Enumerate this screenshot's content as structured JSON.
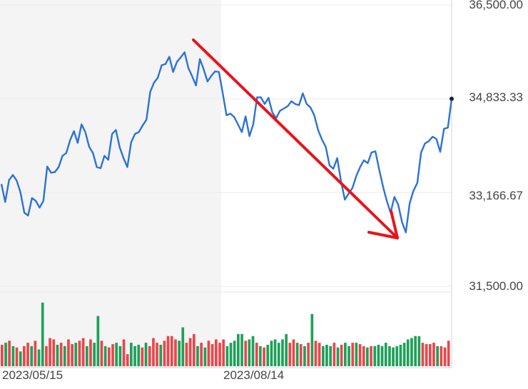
{
  "chart_data": {
    "type": "line",
    "x_tick_labels": [
      "2023/05/15",
      "2023/08/14"
    ],
    "y_tick_labels": [
      "36,500.00",
      "34,833.33",
      "33,166.67",
      "31,500.00"
    ],
    "ylim": [
      31500,
      36500
    ],
    "last_value_marker": 34833.33,
    "series": [
      {
        "values": [
          33320,
          33000,
          33390,
          33480,
          33380,
          33170,
          32810,
          32760,
          33070,
          33020,
          32900,
          33020,
          33630,
          33520,
          33530,
          33620,
          33820,
          33870,
          34100,
          34260,
          34050,
          34380,
          34240,
          33980,
          33870,
          33620,
          33600,
          33820,
          33750,
          34210,
          34280,
          33970,
          33780,
          33620,
          34060,
          34210,
          34240,
          34360,
          34460,
          34960,
          35120,
          35210,
          35430,
          35450,
          35580,
          35310,
          35490,
          35570,
          35660,
          35380,
          35230,
          35070,
          35540,
          35360,
          35140,
          35240,
          35320,
          35310,
          34930,
          34540,
          34570,
          34510,
          34380,
          34240,
          34520,
          34170,
          34380,
          34860,
          34860,
          34740,
          34850,
          34590,
          34490,
          34620,
          34660,
          34700,
          34790,
          34740,
          34720,
          34930,
          34740,
          34680,
          34540,
          34280,
          34110,
          33980,
          33650,
          33590,
          33780,
          33370,
          33040,
          33150,
          33250,
          33460,
          33620,
          33740,
          33690,
          33880,
          33900,
          33580,
          33280,
          33020,
          32810,
          33090,
          32950,
          32640,
          32460,
          32980,
          33200,
          33340,
          33880,
          34040,
          34080,
          34160,
          34120,
          33890,
          34300,
          34320,
          34830
        ]
      }
    ],
    "volume": [
      {
        "v": 0.32,
        "c": "red"
      },
      {
        "v": 0.35,
        "c": "green"
      },
      {
        "v": 0.38,
        "c": "red"
      },
      {
        "v": 0.3,
        "c": "green"
      },
      {
        "v": 0.28,
        "c": "red"
      },
      {
        "v": 0.22,
        "c": "green"
      },
      {
        "v": 0.3,
        "c": "red"
      },
      {
        "v": 0.35,
        "c": "red"
      },
      {
        "v": 0.3,
        "c": "green"
      },
      {
        "v": 0.38,
        "c": "red"
      },
      {
        "v": 0.25,
        "c": "green"
      },
      {
        "v": 0.95,
        "c": "green"
      },
      {
        "v": 0.3,
        "c": "red"
      },
      {
        "v": 0.42,
        "c": "red"
      },
      {
        "v": 0.4,
        "c": "red"
      },
      {
        "v": 0.32,
        "c": "green"
      },
      {
        "v": 0.35,
        "c": "red"
      },
      {
        "v": 0.3,
        "c": "green"
      },
      {
        "v": 0.4,
        "c": "red"
      },
      {
        "v": 0.33,
        "c": "red"
      },
      {
        "v": 0.35,
        "c": "green"
      },
      {
        "v": 0.38,
        "c": "red"
      },
      {
        "v": 0.42,
        "c": "red"
      },
      {
        "v": 0.3,
        "c": "green"
      },
      {
        "v": 0.4,
        "c": "red"
      },
      {
        "v": 0.35,
        "c": "green"
      },
      {
        "v": 0.75,
        "c": "green"
      },
      {
        "v": 0.38,
        "c": "red"
      },
      {
        "v": 0.3,
        "c": "green"
      },
      {
        "v": 0.28,
        "c": "red"
      },
      {
        "v": 0.33,
        "c": "red"
      },
      {
        "v": 0.35,
        "c": "green"
      },
      {
        "v": 0.3,
        "c": "green"
      },
      {
        "v": 0.4,
        "c": "red"
      },
      {
        "v": 0.18,
        "c": "red"
      },
      {
        "v": 0.35,
        "c": "green"
      },
      {
        "v": 0.3,
        "c": "green"
      },
      {
        "v": 0.32,
        "c": "green"
      },
      {
        "v": 0.28,
        "c": "red"
      },
      {
        "v": 0.35,
        "c": "green"
      },
      {
        "v": 0.3,
        "c": "red"
      },
      {
        "v": 0.42,
        "c": "red"
      },
      {
        "v": 0.35,
        "c": "red"
      },
      {
        "v": 0.32,
        "c": "green"
      },
      {
        "v": 0.38,
        "c": "red"
      },
      {
        "v": 0.45,
        "c": "red"
      },
      {
        "v": 0.45,
        "c": "red"
      },
      {
        "v": 0.4,
        "c": "red"
      },
      {
        "v": 0.38,
        "c": "green"
      },
      {
        "v": 0.58,
        "c": "green"
      },
      {
        "v": 0.35,
        "c": "red"
      },
      {
        "v": 0.42,
        "c": "red"
      },
      {
        "v": 0.48,
        "c": "red"
      },
      {
        "v": 0.3,
        "c": "green"
      },
      {
        "v": 0.35,
        "c": "red"
      },
      {
        "v": 0.28,
        "c": "green"
      },
      {
        "v": 0.38,
        "c": "red"
      },
      {
        "v": 0.33,
        "c": "red"
      },
      {
        "v": 0.4,
        "c": "red"
      },
      {
        "v": 0.35,
        "c": "red"
      },
      {
        "v": 0.4,
        "c": "red"
      },
      {
        "v": 0.3,
        "c": "green"
      },
      {
        "v": 0.35,
        "c": "green"
      },
      {
        "v": 0.38,
        "c": "green"
      },
      {
        "v": 0.48,
        "c": "green"
      },
      {
        "v": 0.48,
        "c": "green"
      },
      {
        "v": 0.38,
        "c": "red"
      },
      {
        "v": 0.4,
        "c": "green"
      },
      {
        "v": 0.45,
        "c": "green"
      },
      {
        "v": 0.35,
        "c": "red"
      },
      {
        "v": 0.3,
        "c": "green"
      },
      {
        "v": 0.28,
        "c": "red"
      },
      {
        "v": 0.32,
        "c": "green"
      },
      {
        "v": 0.38,
        "c": "green"
      },
      {
        "v": 0.4,
        "c": "green"
      },
      {
        "v": 0.35,
        "c": "green"
      },
      {
        "v": 0.4,
        "c": "green"
      },
      {
        "v": 0.48,
        "c": "green"
      },
      {
        "v": 0.35,
        "c": "red"
      },
      {
        "v": 0.4,
        "c": "red"
      },
      {
        "v": 0.35,
        "c": "green"
      },
      {
        "v": 0.33,
        "c": "red"
      },
      {
        "v": 0.3,
        "c": "green"
      },
      {
        "v": 0.35,
        "c": "red"
      },
      {
        "v": 0.78,
        "c": "green"
      },
      {
        "v": 0.38,
        "c": "red"
      },
      {
        "v": 0.35,
        "c": "red"
      },
      {
        "v": 0.3,
        "c": "green"
      },
      {
        "v": 0.32,
        "c": "green"
      },
      {
        "v": 0.3,
        "c": "green"
      },
      {
        "v": 0.35,
        "c": "red"
      },
      {
        "v": 0.28,
        "c": "green"
      },
      {
        "v": 0.32,
        "c": "red"
      },
      {
        "v": 0.35,
        "c": "green"
      },
      {
        "v": 0.3,
        "c": "green"
      },
      {
        "v": 0.35,
        "c": "red"
      },
      {
        "v": 0.35,
        "c": "green"
      },
      {
        "v": 0.33,
        "c": "red"
      },
      {
        "v": 0.3,
        "c": "red"
      },
      {
        "v": 0.28,
        "c": "green"
      },
      {
        "v": 0.3,
        "c": "red"
      },
      {
        "v": 0.3,
        "c": "green"
      },
      {
        "v": 0.32,
        "c": "green"
      },
      {
        "v": 0.3,
        "c": "green"
      },
      {
        "v": 0.35,
        "c": "green"
      },
      {
        "v": 0.3,
        "c": "green"
      },
      {
        "v": 0.28,
        "c": "green"
      },
      {
        "v": 0.3,
        "c": "green"
      },
      {
        "v": 0.32,
        "c": "green"
      },
      {
        "v": 0.35,
        "c": "green"
      },
      {
        "v": 0.4,
        "c": "green"
      },
      {
        "v": 0.42,
        "c": "green"
      },
      {
        "v": 0.45,
        "c": "green"
      },
      {
        "v": 0.45,
        "c": "green"
      },
      {
        "v": 0.35,
        "c": "red"
      },
      {
        "v": 0.33,
        "c": "red"
      },
      {
        "v": 0.33,
        "c": "red"
      },
      {
        "v": 0.35,
        "c": "red"
      },
      {
        "v": 0.3,
        "c": "green"
      },
      {
        "v": 0.3,
        "c": "red"
      },
      {
        "v": 0.28,
        "c": "red"
      },
      {
        "v": 0.38,
        "c": "red"
      }
    ],
    "colors": {
      "line": "#2b72d6",
      "up_volume": "#1fa05a",
      "down_volume": "#e8474b",
      "annotation_arrow": "#e8141b",
      "shaded_region": "#f4f4f4",
      "marker": "#222222"
    },
    "grid": true,
    "annotation": "red downward trend arrow"
  }
}
